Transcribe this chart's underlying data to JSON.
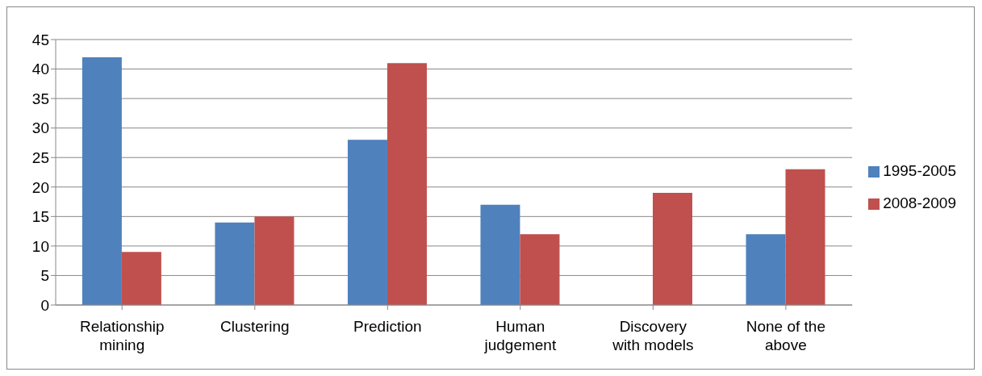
{
  "chart_data": {
    "type": "bar",
    "categories": [
      "Relationship mining",
      "Clustering",
      "Prediction",
      "Human judgement",
      "Discovery with models",
      "None of the above"
    ],
    "series": [
      {
        "name": "1995-2005",
        "color": "#4f81bd",
        "values": [
          42,
          14,
          28,
          17,
          0,
          12
        ]
      },
      {
        "name": "2008-2009",
        "color": "#c0504d",
        "values": [
          9,
          15,
          41,
          12,
          19,
          23
        ]
      }
    ],
    "ylim": [
      0,
      45
    ],
    "yticks": [
      0,
      5,
      10,
      15,
      20,
      25,
      30,
      35,
      40,
      45
    ],
    "grid": "y",
    "legend": "right"
  }
}
